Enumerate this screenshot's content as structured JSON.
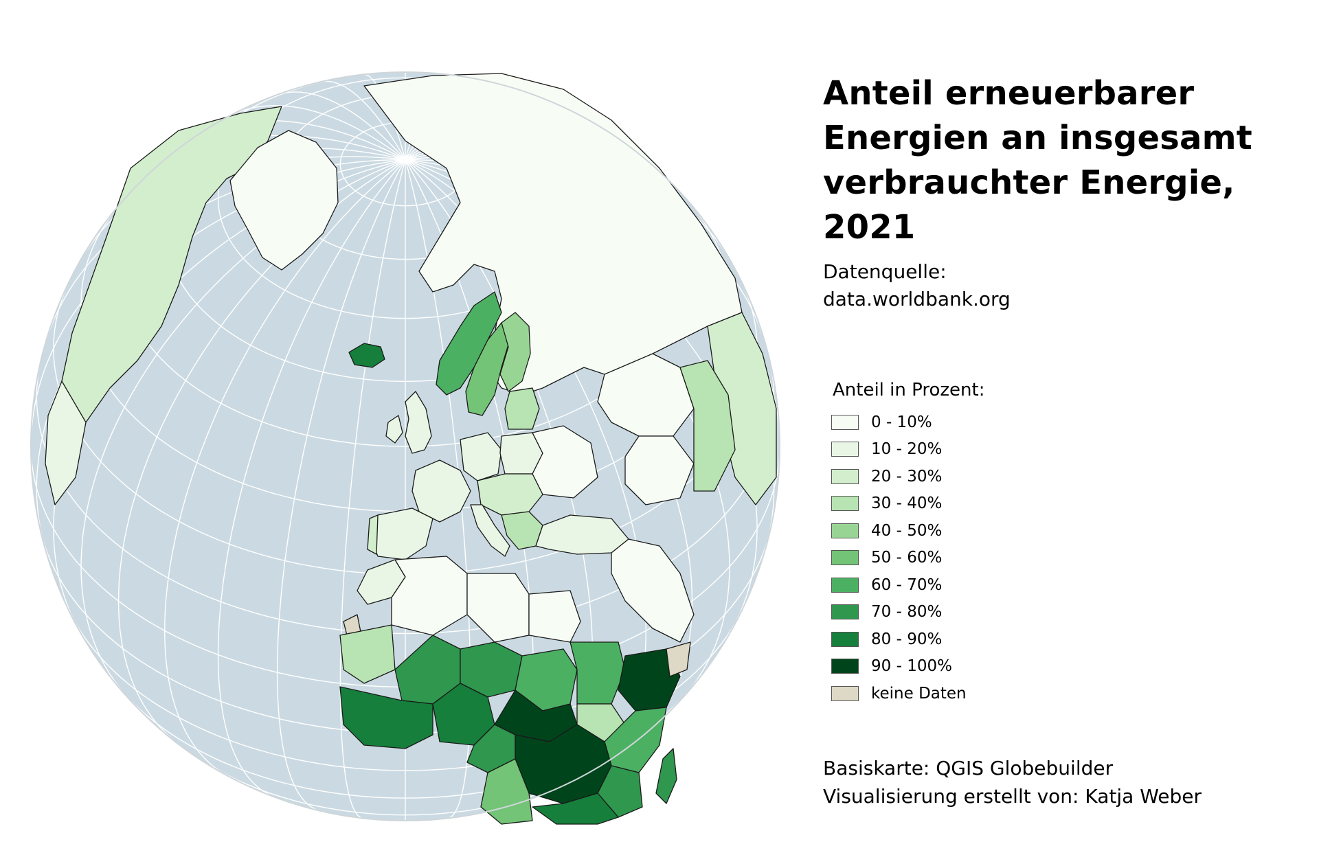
{
  "title": "Anteil erneuerbarer Energien an insgesamt verbrauchter Energie, 2021",
  "source": {
    "label": "Datenquelle:",
    "url": "data.worldbank.org"
  },
  "legend": {
    "title": "Anteil in Prozent:",
    "classes": [
      {
        "label": "0 - 10%",
        "color": "#f7fcf5"
      },
      {
        "label": "10 - 20%",
        "color": "#e9f6e5"
      },
      {
        "label": "20 - 30%",
        "color": "#d3eecd"
      },
      {
        "label": "30 - 40%",
        "color": "#b8e3b2"
      },
      {
        "label": "40 - 50%",
        "color": "#98d594"
      },
      {
        "label": "50 - 60%",
        "color": "#73c476"
      },
      {
        "label": "60 - 70%",
        "color": "#4bb062"
      },
      {
        "label": "70 - 80%",
        "color": "#2f974e"
      },
      {
        "label": "80 - 90%",
        "color": "#157f3b"
      },
      {
        "label": "90 - 100%",
        "color": "#00441b"
      },
      {
        "label": "keine Daten",
        "color": "#ddd9c6"
      }
    ]
  },
  "credits": {
    "basemap": "Basiskarte: QGIS Globebuilder",
    "author": "Visualisierung erstellt von: Katja Weber"
  },
  "map": {
    "projection": "orthographic",
    "center": {
      "lon": 10,
      "lat": 40
    },
    "ocean_color": "#cbdae2",
    "graticule_color": "#ffffff",
    "border_color": "#1a1a1a"
  }
}
